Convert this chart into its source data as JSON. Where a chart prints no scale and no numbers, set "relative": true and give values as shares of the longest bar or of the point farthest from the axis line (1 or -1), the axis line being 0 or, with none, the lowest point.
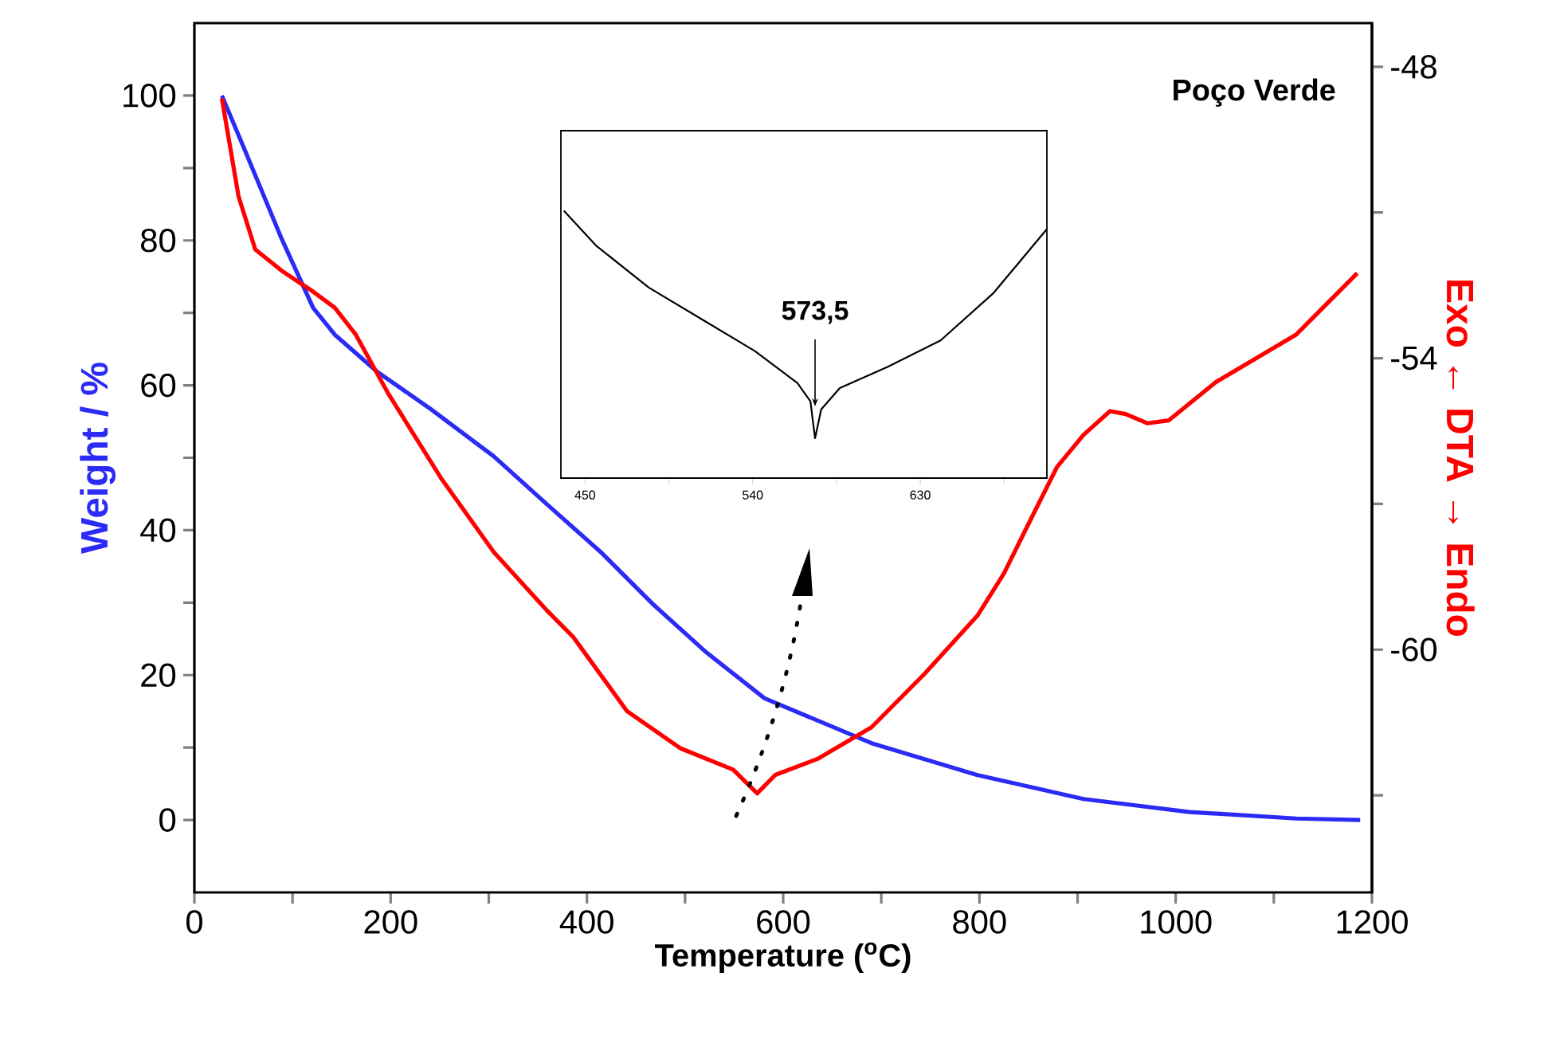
{
  "chart_data": [
    {
      "type": "line",
      "xlabel": "Temperature ($^{o}$C)",
      "ylabel": "Weight / %",
      "y2label": "Exo ← DTA → Endo",
      "annotations": [
        "Poço Verde"
      ],
      "xlim": [
        0,
        1200
      ],
      "ylim": [
        -10,
        110
      ],
      "y2lim": [
        -65,
        -47.1
      ],
      "xticks": [
        0,
        200,
        400,
        600,
        800,
        1000,
        1200,
        {
          "value": 100,
          "label": null
        },
        {
          "value": 300,
          "label": null
        },
        {
          "value": 500,
          "label": null
        },
        {
          "value": 700,
          "label": null
        },
        {
          "value": 900,
          "label": null
        },
        {
          "value": 1100,
          "label": null
        }
      ],
      "yticks": [
        0,
        20,
        40,
        60,
        80,
        100,
        {
          "value": 10,
          "label": null
        },
        {
          "value": 30,
          "label": null
        },
        {
          "value": 50,
          "label": null
        },
        {
          "value": 70,
          "label": null
        },
        {
          "value": 90,
          "label": null
        }
      ],
      "y2ticks": [
        -48,
        -54,
        -60,
        {
          "value": -51,
          "label": null
        },
        {
          "value": -57,
          "label": null
        },
        {
          "value": -63,
          "label": null
        }
      ],
      "series": [
        {
          "color": "#2b2bf5",
          "x": [
            28,
            51,
            89,
            121,
            143,
            186,
            240,
            305,
            359,
            414,
            468,
            522,
            581,
            690,
            798,
            906,
            1014,
            1123,
            1188
          ],
          "values": [
            100,
            92.6,
            80.2,
            70.7,
            67,
            61.9,
            56.8,
            50.2,
            43.6,
            37,
            29.7,
            23.1,
            16.8,
            10.6,
            6.2,
            2.9,
            1.1,
            0.2,
            0
          ]
        },
        {
          "color": "#ff0000",
          "axis": "y2",
          "x": [
            28,
            45,
            62,
            89,
            121,
            143,
            164,
            197,
            251,
            305,
            359,
            386,
            441,
            495,
            549,
            573.5,
            592,
            635,
            690,
            744,
            798,
            825,
            852,
            879,
            906,
            933,
            949,
            971,
            993,
            1041,
            1123,
            1185
          ],
          "values": [
            -48.65,
            -50.67,
            -51.76,
            -52.2,
            -52.63,
            -52.96,
            -53.5,
            -54.71,
            -56.46,
            -57.99,
            -59.19,
            -59.74,
            -61.27,
            -62.03,
            -62.47,
            -62.96,
            -62.58,
            -62.25,
            -61.6,
            -60.5,
            -59.3,
            -58.43,
            -57.33,
            -56.24,
            -55.58,
            -55.09,
            -55.15,
            -55.34,
            -55.28,
            -54.49,
            -53.51,
            -52.25
          ]
        }
      ]
    },
    {
      "type": "line",
      "relative": true,
      "annotations": [
        "573,5"
      ],
      "xlim": [
        437,
        698
      ],
      "xticks": [
        450,
        540,
        630,
        {
          "value": 495,
          "label": null
        },
        {
          "value": 585,
          "label": null
        },
        {
          "value": 675,
          "label": null
        }
      ],
      "series": [
        {
          "color": "#000000",
          "x": [
            438.6,
            455.7,
            484.2,
            512.7,
            541.2,
            564,
            571,
            573.5,
            576.8,
            586.8,
            612.4,
            640.9,
            669.4,
            697.9
          ],
          "values": [
            1,
            0.871,
            0.713,
            0.594,
            0.475,
            0.356,
            0.287,
            0.149,
            0.257,
            0.337,
            0.416,
            0.515,
            0.693,
            0.931
          ]
        }
      ]
    }
  ]
}
